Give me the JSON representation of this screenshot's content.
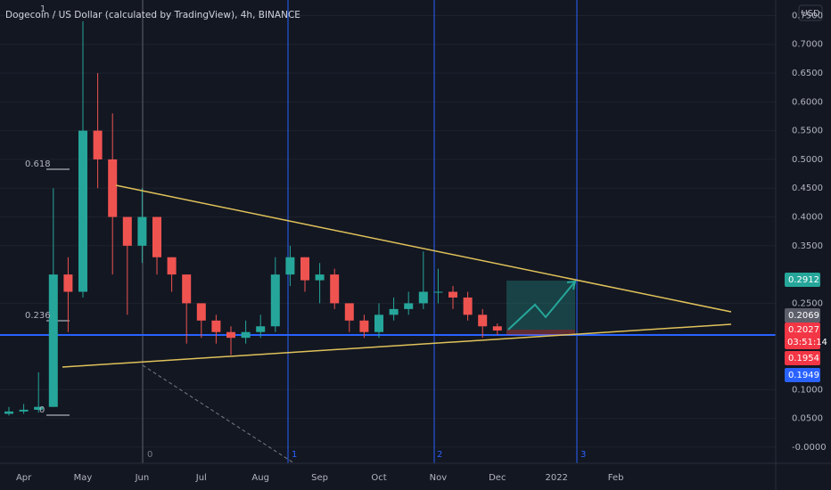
{
  "chart_data": {
    "type": "candlestick",
    "title": "Dogecoin / US Dollar (calculated by TradingView), 4h, BINANCE",
    "currency": "USD",
    "categories": [
      null,
      "Apr",
      null,
      null,
      null,
      "May",
      null,
      null,
      null,
      "Jun",
      null,
      null,
      null,
      "Jul",
      null,
      null,
      null,
      "Aug",
      null,
      null,
      null,
      "Sep",
      null,
      null,
      null,
      "Oct",
      null,
      null,
      null,
      "Nov",
      null,
      null,
      null,
      "Dec",
      null,
      null,
      null,
      "2022",
      null,
      null,
      null,
      "Feb",
      null,
      null,
      null,
      null,
      null,
      null,
      null,
      null,
      null
    ],
    "open": [
      0.058,
      0.062,
      0.065,
      0.07,
      0.3,
      0.27,
      0.55,
      0.5,
      0.4,
      0.35,
      0.4,
      0.33,
      0.3,
      0.25,
      0.22,
      0.2,
      0.19,
      0.2,
      0.21,
      0.3,
      0.33,
      0.29,
      0.3,
      0.25,
      0.22,
      0.2,
      0.23,
      0.24,
      0.25,
      0.27,
      0.27,
      0.26,
      0.23,
      0.21,
      null,
      null,
      null,
      null,
      null,
      null,
      null,
      null,
      null,
      null,
      null,
      null,
      null,
      null,
      null,
      null,
      null
    ],
    "high": [
      0.07,
      0.075,
      0.13,
      0.45,
      0.33,
      0.74,
      0.65,
      0.58,
      0.4,
      0.45,
      0.4,
      0.33,
      0.3,
      0.25,
      0.23,
      0.21,
      0.22,
      0.23,
      0.33,
      0.35,
      0.33,
      0.32,
      0.31,
      0.25,
      0.23,
      0.25,
      0.26,
      0.27,
      0.34,
      0.31,
      0.28,
      0.27,
      0.24,
      0.215,
      null,
      null,
      null,
      null,
      null,
      null,
      null,
      null,
      null,
      null,
      null,
      null,
      null,
      null,
      null,
      null,
      null
    ],
    "low": [
      0.055,
      0.058,
      0.06,
      0.07,
      0.2,
      0.26,
      0.45,
      0.3,
      0.23,
      0.32,
      0.3,
      0.27,
      0.18,
      0.19,
      0.18,
      0.16,
      0.18,
      0.19,
      0.2,
      0.28,
      0.27,
      0.25,
      0.24,
      0.2,
      0.19,
      0.19,
      0.22,
      0.23,
      0.24,
      0.25,
      0.24,
      0.22,
      0.19,
      0.195,
      null,
      null,
      null,
      null,
      null,
      null,
      null,
      null,
      null,
      null,
      null,
      null,
      null,
      null,
      null,
      null,
      null
    ],
    "close": [
      0.062,
      0.065,
      0.07,
      0.3,
      0.27,
      0.55,
      0.5,
      0.4,
      0.35,
      0.4,
      0.33,
      0.3,
      0.25,
      0.22,
      0.2,
      0.19,
      0.2,
      0.21,
      0.3,
      0.33,
      0.29,
      0.3,
      0.25,
      0.22,
      0.2,
      0.23,
      0.24,
      0.25,
      0.27,
      0.27,
      0.26,
      0.23,
      0.21,
      0.2027,
      null,
      null,
      null,
      null,
      null,
      null,
      null,
      null,
      null,
      null,
      null,
      null,
      null,
      null,
      null,
      null,
      null
    ],
    "up_color": "#26a69a",
    "down_color": "#ef5350",
    "ylim": [
      -0.028,
      0.777
    ],
    "yticks": [
      {
        "value": 0,
        "label": "-0.0000"
      },
      {
        "value": 0.05,
        "label": "0.0500"
      },
      {
        "value": 0.1,
        "label": "0.1000"
      },
      {
        "value": 0.25,
        "label": "0.2500"
      },
      {
        "value": 0.35,
        "label": "0.3500"
      },
      {
        "value": 0.4,
        "label": "0.4000"
      },
      {
        "value": 0.45,
        "label": "0.4500"
      },
      {
        "value": 0.5,
        "label": "0.5000"
      },
      {
        "value": 0.55,
        "label": "0.5500"
      },
      {
        "value": 0.6,
        "label": "0.6000"
      },
      {
        "value": 0.65,
        "label": "0.6500"
      },
      {
        "value": 0.7,
        "label": "0.7000"
      },
      {
        "value": 0.75,
        "label": "0.7500"
      }
    ],
    "grid": true,
    "price_labels": [
      {
        "value": 0.2912,
        "label": "0.2912",
        "color": "#26a69a"
      },
      {
        "value": 0.2069,
        "label": "0.2069",
        "color": "#5d606b"
      },
      {
        "value": 0.2027,
        "label": "0.2027",
        "color": "#f23645"
      },
      {
        "value": 0.1954,
        "label": "0.1954",
        "color": "#f23645"
      },
      {
        "value": 0.1949,
        "label": "0.1949",
        "color": "#2962ff"
      }
    ],
    "countdown": "03:51:14",
    "fib_labels": [
      "1",
      "0.618",
      "0.236",
      "0"
    ],
    "wave_labels": [
      "0",
      "1",
      "2",
      "3"
    ]
  }
}
